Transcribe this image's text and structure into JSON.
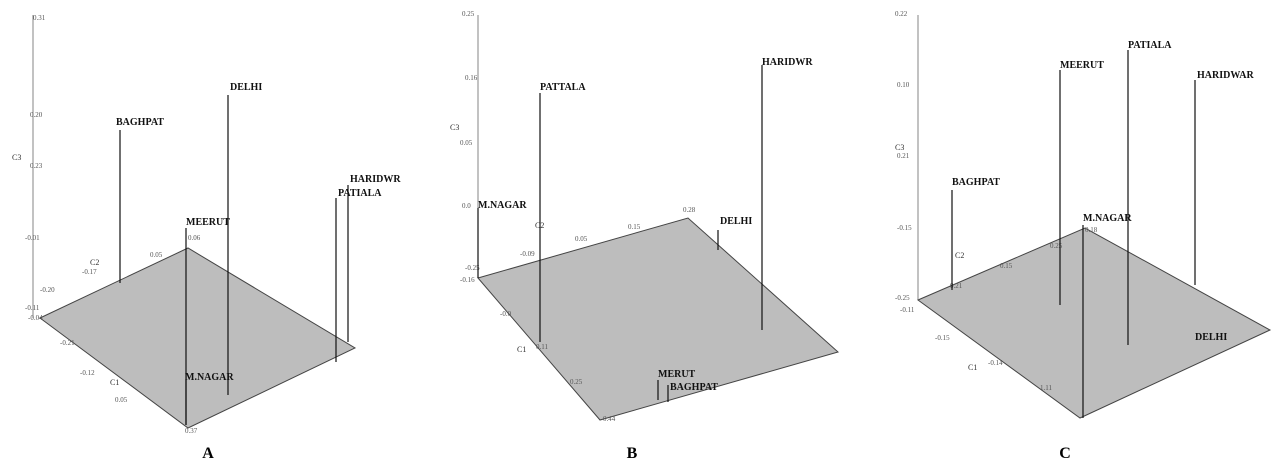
{
  "panels": [
    {
      "label": "A",
      "axes": [
        "C1",
        "C2",
        "C3"
      ],
      "ticks": [
        "0.31",
        "0.20",
        "0.23",
        "-0.01",
        "-0.11",
        "-0.20",
        "-0.17",
        "0.05",
        "0.06",
        "-0.04",
        "-0.21",
        "-0.12",
        "0.05",
        "0.37"
      ],
      "points": [
        {
          "name": "BAGHPAT"
        },
        {
          "name": "DELHI"
        },
        {
          "name": "MEERUT"
        },
        {
          "name": "HARIDWR"
        },
        {
          "name": "PATIALA"
        },
        {
          "name": "M.NAGAR"
        }
      ]
    },
    {
      "label": "B",
      "axes": [
        "C1",
        "C2",
        "C3"
      ],
      "ticks": [
        "0.25",
        "0.16",
        "0.05",
        "0.0",
        "-0.25",
        "-0.09",
        "0.05",
        "0.15",
        "0.28",
        "-0.16",
        "-0.0",
        "0.11",
        "0.25",
        "0.44"
      ],
      "points": [
        {
          "name": "HARIDWR"
        },
        {
          "name": "PATTALA"
        },
        {
          "name": "DELHI"
        },
        {
          "name": "M.NAGAR"
        },
        {
          "name": "MERUT"
        },
        {
          "name": "BAGHPAT"
        }
      ]
    },
    {
      "label": "C",
      "axes": [
        "C1",
        "C2",
        "C3"
      ],
      "ticks": [
        "0.22",
        "0.10",
        "0.21",
        "-0.15",
        "-0.25",
        "0.21",
        "0.15",
        "0.25",
        "0.18",
        "-0.11",
        "-0.15",
        "-0.14",
        "1.11"
      ],
      "points": [
        {
          "name": "MEERUT"
        },
        {
          "name": "PATIALA"
        },
        {
          "name": "HARIDWAR"
        },
        {
          "name": "BAGHPAT"
        },
        {
          "name": "M.NAGAR"
        },
        {
          "name": "DELHI"
        }
      ]
    }
  ]
}
